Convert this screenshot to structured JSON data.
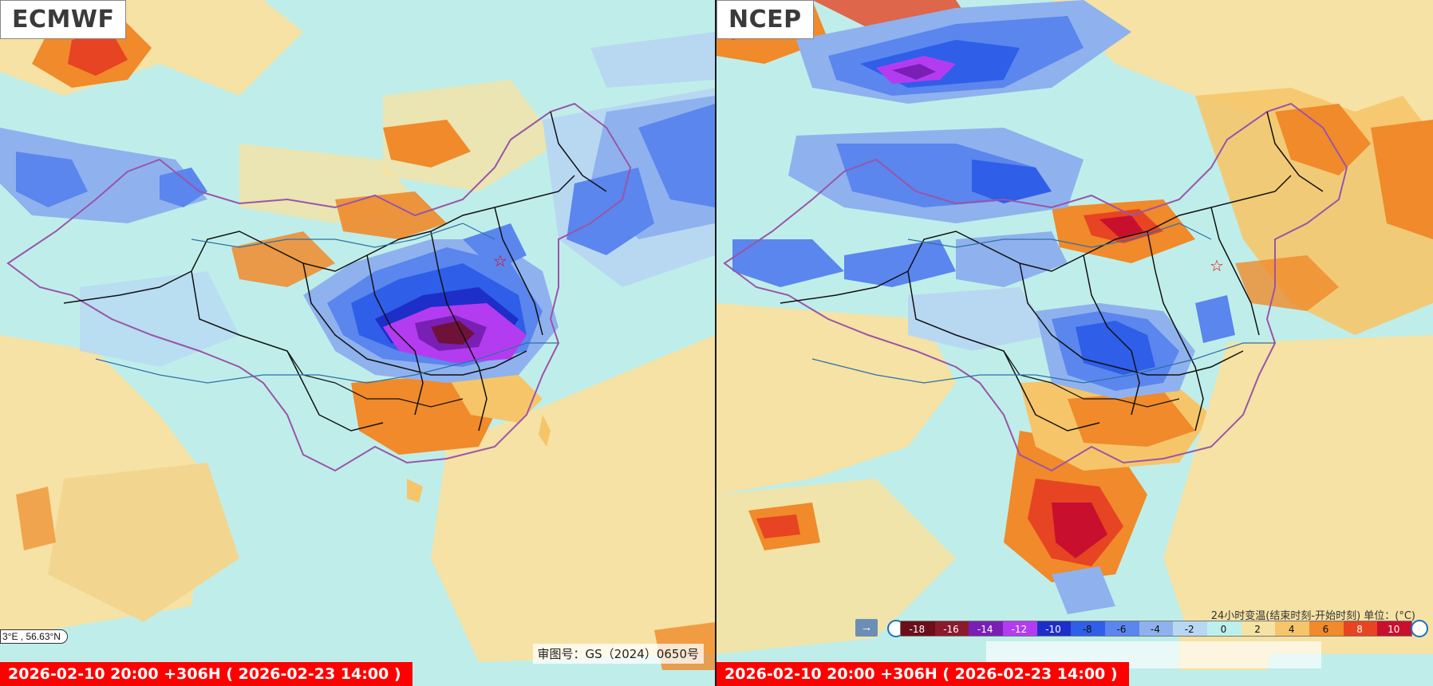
{
  "panels": {
    "left": {
      "model": "ECMWF",
      "time": "2026-02-10 20:00 +306H ( 2026-02-23 14:00 )",
      "coord_readout": "3°E , 56.63°N",
      "review_number": "审图号：GS（2024）0650号"
    },
    "right": {
      "model": "NCEP",
      "time": "2026-02-10 20:00 +306H ( 2026-02-23 14:00 )"
    }
  },
  "legend": {
    "title": "24小时变温(结束时刻-开始时刻) 单位：(°C)",
    "arrow_icon": "→",
    "ticks": [
      "-18",
      "-16",
      "-14",
      "-12",
      "-10",
      "-8",
      "-6",
      "-4",
      "-2",
      "0",
      "2",
      "4",
      "6",
      "8",
      "10"
    ],
    "colors": [
      "#6b0f1a",
      "#8b1a2a",
      "#7a1fb5",
      "#b43cf0",
      "#1d2fc8",
      "#2f5ee8",
      "#5a86ee",
      "#8fb2ee",
      "#b8d8f2",
      "#bdf0ec",
      "#f5e2a4",
      "#f6c56a",
      "#f08a2a",
      "#e64422",
      "#c8102e"
    ]
  },
  "colors": {
    "time_bar": "#ff0000",
    "cyan_bg": "#bfeeea",
    "border_province": "#111111",
    "border_national": "#9a55a8"
  }
}
